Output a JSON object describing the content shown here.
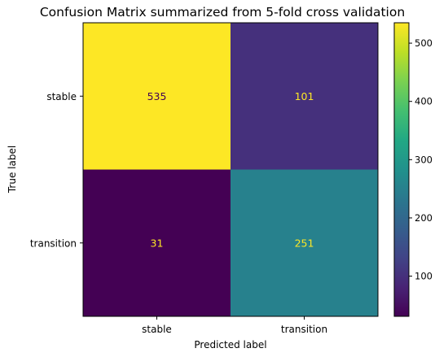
{
  "chart_data": {
    "type": "heatmap",
    "title": "Confusion Matrix summarized from 5-fold cross validation",
    "xlabel": "Predicted label",
    "ylabel": "True label",
    "x_categories": [
      "stable",
      "transition"
    ],
    "y_categories": [
      "stable",
      "transition"
    ],
    "values": [
      [
        535,
        101
      ],
      [
        31,
        251
      ]
    ],
    "colormap": "viridis",
    "color_range": [
      31,
      535
    ],
    "colorbar_ticks": [
      100,
      200,
      300,
      400,
      500
    ],
    "annotation_colors": {
      "on_dark": "#fde725",
      "on_light": "#440154"
    },
    "grid": false
  }
}
